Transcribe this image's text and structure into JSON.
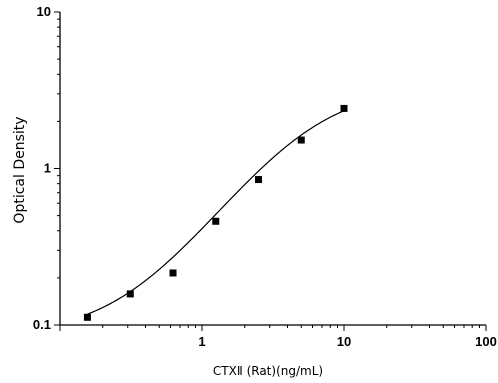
{
  "chart_data": {
    "type": "scatter",
    "title": "",
    "xlabel": "CTXⅡ (Rat)(ng/mL)",
    "ylabel": "Optical Density",
    "x_scale": "log",
    "y_scale": "log",
    "xlim": [
      0.1,
      100
    ],
    "ylim": [
      0.1,
      10
    ],
    "x_ticks": [
      "1",
      "10",
      "100"
    ],
    "y_ticks": [
      "0.1",
      "1",
      "10"
    ],
    "grid": false,
    "legend": "none",
    "marker": "square",
    "fit": "4-parameter logistic curve",
    "series": [
      {
        "x": [
          0.156,
          0.3125,
          0.625,
          1.25,
          2.5,
          5,
          10
        ],
        "y": [
          0.112,
          0.158,
          0.215,
          0.46,
          0.85,
          1.52,
          2.42
        ]
      }
    ]
  }
}
